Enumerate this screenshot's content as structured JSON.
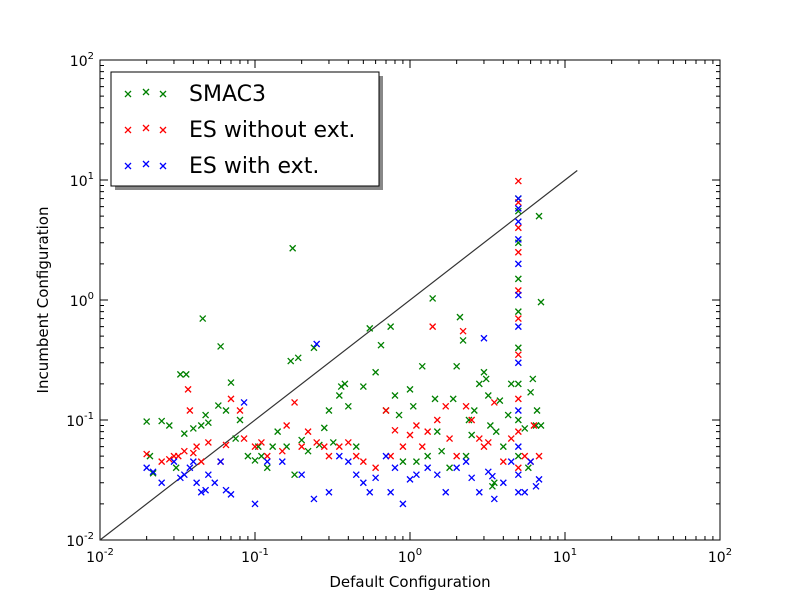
{
  "chart_data": {
    "type": "scatter",
    "xlabel": "Default Configuration",
    "ylabel": "Incumbent Configuration",
    "xscale": "log",
    "yscale": "log",
    "xlim": [
      0.01,
      100
    ],
    "ylim": [
      0.01,
      100
    ],
    "x_ticks": [
      {
        "base": "10",
        "exp": "-2"
      },
      {
        "base": "10",
        "exp": "-1"
      },
      {
        "base": "10",
        "exp": "0"
      },
      {
        "base": "10",
        "exp": "1"
      },
      {
        "base": "10",
        "exp": "2"
      }
    ],
    "y_ticks": [
      {
        "base": "10",
        "exp": "-2"
      },
      {
        "base": "10",
        "exp": "-1"
      },
      {
        "base": "10",
        "exp": "0"
      },
      {
        "base": "10",
        "exp": "1"
      },
      {
        "base": "10",
        "exp": "2"
      }
    ],
    "diagonal": {
      "from": [
        0.01,
        0.01
      ],
      "to": [
        12,
        12
      ],
      "color": "#333333"
    },
    "legend_position": "top-left",
    "grid": false,
    "series": [
      {
        "name": "SMAC3",
        "color": "#008000",
        "points": [
          [
            0.02,
            0.097
          ],
          [
            0.021,
            0.05
          ],
          [
            0.022,
            0.036
          ],
          [
            0.025,
            0.098
          ],
          [
            0.028,
            0.09
          ],
          [
            0.031,
            0.04
          ],
          [
            0.033,
            0.24
          ],
          [
            0.036,
            0.24
          ],
          [
            0.035,
            0.077
          ],
          [
            0.04,
            0.085
          ],
          [
            0.045,
            0.09
          ],
          [
            0.046,
            0.7
          ],
          [
            0.048,
            0.11
          ],
          [
            0.05,
            0.095
          ],
          [
            0.058,
            0.132
          ],
          [
            0.06,
            0.41
          ],
          [
            0.065,
            0.12
          ],
          [
            0.07,
            0.205
          ],
          [
            0.075,
            0.07
          ],
          [
            0.08,
            0.1
          ],
          [
            0.09,
            0.05
          ],
          [
            0.1,
            0.046
          ],
          [
            0.105,
            0.06
          ],
          [
            0.11,
            0.05
          ],
          [
            0.12,
            0.04
          ],
          [
            0.13,
            0.06
          ],
          [
            0.14,
            0.08
          ],
          [
            0.16,
            0.06
          ],
          [
            0.175,
            2.7
          ],
          [
            0.17,
            0.31
          ],
          [
            0.18,
            0.035
          ],
          [
            0.19,
            0.33
          ],
          [
            0.2,
            0.068
          ],
          [
            0.22,
            0.055
          ],
          [
            0.24,
            0.4
          ],
          [
            0.26,
            0.062
          ],
          [
            0.28,
            0.086
          ],
          [
            0.3,
            0.12
          ],
          [
            0.32,
            0.065
          ],
          [
            0.35,
            0.16
          ],
          [
            0.36,
            0.19
          ],
          [
            0.38,
            0.2
          ],
          [
            0.4,
            0.13
          ],
          [
            0.45,
            0.06
          ],
          [
            0.5,
            0.19
          ],
          [
            0.55,
            0.58
          ],
          [
            0.6,
            0.25
          ],
          [
            0.65,
            0.42
          ],
          [
            0.7,
            0.12
          ],
          [
            0.75,
            0.6
          ],
          [
            0.8,
            0.16
          ],
          [
            0.85,
            0.11
          ],
          [
            0.9,
            0.045
          ],
          [
            1.0,
            0.18
          ],
          [
            1.05,
            0.13
          ],
          [
            1.1,
            0.045
          ],
          [
            1.2,
            0.28
          ],
          [
            1.3,
            0.05
          ],
          [
            1.4,
            1.03
          ],
          [
            1.45,
            0.15
          ],
          [
            1.5,
            0.08
          ],
          [
            1.6,
            0.055
          ],
          [
            1.8,
            0.04
          ],
          [
            1.9,
            0.15
          ],
          [
            2.0,
            0.28
          ],
          [
            2.1,
            0.72
          ],
          [
            2.2,
            0.46
          ],
          [
            2.3,
            0.05
          ],
          [
            2.4,
            0.1
          ],
          [
            2.5,
            0.075
          ],
          [
            2.6,
            0.12
          ],
          [
            2.8,
            0.2
          ],
          [
            3.0,
            0.25
          ],
          [
            3.1,
            0.22
          ],
          [
            3.2,
            0.16
          ],
          [
            3.3,
            0.09
          ],
          [
            3.4,
            0.028
          ],
          [
            3.5,
            0.03
          ],
          [
            3.6,
            0.08
          ],
          [
            3.8,
            0.145
          ],
          [
            4.0,
            0.06
          ],
          [
            4.3,
            0.11
          ],
          [
            4.5,
            0.2
          ],
          [
            5,
            7.0
          ],
          [
            5,
            5.5
          ],
          [
            5,
            3.0
          ],
          [
            5,
            1.5
          ],
          [
            5,
            0.8
          ],
          [
            5,
            0.4
          ],
          [
            5,
            0.2
          ],
          [
            5,
            0.1
          ],
          [
            5,
            0.05
          ],
          [
            5.5,
            0.085
          ],
          [
            6.0,
            0.17
          ],
          [
            6.2,
            0.22
          ],
          [
            6.5,
            0.09
          ],
          [
            6.8,
            5.0
          ],
          [
            7.0,
            0.96
          ],
          [
            7.0,
            0.09
          ],
          [
            6.6,
            0.12
          ],
          [
            5.8,
            0.04
          ]
        ]
      },
      {
        "name": "ES without ext.",
        "color": "#ff0000",
        "points": [
          [
            0.02,
            0.052
          ],
          [
            0.025,
            0.045
          ],
          [
            0.028,
            0.047
          ],
          [
            0.03,
            0.05
          ],
          [
            0.032,
            0.05
          ],
          [
            0.035,
            0.055
          ],
          [
            0.037,
            0.18
          ],
          [
            0.038,
            0.12
          ],
          [
            0.04,
            0.053
          ],
          [
            0.042,
            0.06
          ],
          [
            0.045,
            0.045
          ],
          [
            0.05,
            0.065
          ],
          [
            0.06,
            0.045
          ],
          [
            0.065,
            0.062
          ],
          [
            0.07,
            0.15
          ],
          [
            0.08,
            0.12
          ],
          [
            0.085,
            0.07
          ],
          [
            0.1,
            0.06
          ],
          [
            0.11,
            0.065
          ],
          [
            0.12,
            0.05
          ],
          [
            0.15,
            0.055
          ],
          [
            0.16,
            0.09
          ],
          [
            0.18,
            0.14
          ],
          [
            0.2,
            0.06
          ],
          [
            0.22,
            0.08
          ],
          [
            0.25,
            0.065
          ],
          [
            0.28,
            0.06
          ],
          [
            0.3,
            0.05
          ],
          [
            0.35,
            0.06
          ],
          [
            0.4,
            0.065
          ],
          [
            0.45,
            0.05
          ],
          [
            0.5,
            0.045
          ],
          [
            0.6,
            0.04
          ],
          [
            0.7,
            0.12
          ],
          [
            0.75,
            0.05
          ],
          [
            0.8,
            0.082
          ],
          [
            0.9,
            0.06
          ],
          [
            1.0,
            0.075
          ],
          [
            1.1,
            0.09
          ],
          [
            1.2,
            0.06
          ],
          [
            1.3,
            0.08
          ],
          [
            1.4,
            0.6
          ],
          [
            1.5,
            0.1
          ],
          [
            1.7,
            0.13
          ],
          [
            1.8,
            0.07
          ],
          [
            2.0,
            0.05
          ],
          [
            2.2,
            0.55
          ],
          [
            2.3,
            0.13
          ],
          [
            2.5,
            0.1
          ],
          [
            2.8,
            0.07
          ],
          [
            3.0,
            0.06
          ],
          [
            3.2,
            0.065
          ],
          [
            3.5,
            0.14
          ],
          [
            4.0,
            0.045
          ],
          [
            4.5,
            0.07
          ],
          [
            5,
            9.8
          ],
          [
            5,
            6.5
          ],
          [
            5,
            4.0
          ],
          [
            5,
            2.5
          ],
          [
            5,
            1.2
          ],
          [
            5,
            0.7
          ],
          [
            5,
            0.35
          ],
          [
            5,
            0.15
          ],
          [
            5,
            0.08
          ],
          [
            5,
            0.04
          ],
          [
            5.5,
            0.05
          ],
          [
            6.0,
            0.045
          ],
          [
            6.3,
            0.09
          ],
          [
            6.8,
            0.05
          ]
        ]
      },
      {
        "name": "ES with ext.",
        "color": "#0000ff",
        "points": [
          [
            0.02,
            0.04
          ],
          [
            0.022,
            0.037
          ],
          [
            0.025,
            0.03
          ],
          [
            0.03,
            0.045
          ],
          [
            0.033,
            0.033
          ],
          [
            0.035,
            0.035
          ],
          [
            0.038,
            0.04
          ],
          [
            0.04,
            0.045
          ],
          [
            0.042,
            0.03
          ],
          [
            0.045,
            0.025
          ],
          [
            0.048,
            0.026
          ],
          [
            0.05,
            0.035
          ],
          [
            0.055,
            0.03
          ],
          [
            0.06,
            0.045
          ],
          [
            0.065,
            0.026
          ],
          [
            0.07,
            0.024
          ],
          [
            0.085,
            0.14
          ],
          [
            0.1,
            0.02
          ],
          [
            0.12,
            0.045
          ],
          [
            0.15,
            0.045
          ],
          [
            0.2,
            0.035
          ],
          [
            0.25,
            0.43
          ],
          [
            0.24,
            0.022
          ],
          [
            0.3,
            0.025
          ],
          [
            0.35,
            0.05
          ],
          [
            0.4,
            0.045
          ],
          [
            0.45,
            0.035
          ],
          [
            0.5,
            0.03
          ],
          [
            0.55,
            0.025
          ],
          [
            0.6,
            0.033
          ],
          [
            0.7,
            0.05
          ],
          [
            0.75,
            0.025
          ],
          [
            0.8,
            0.04
          ],
          [
            0.9,
            0.02
          ],
          [
            1.0,
            0.032
          ],
          [
            1.1,
            0.035
          ],
          [
            1.3,
            0.04
          ],
          [
            1.5,
            0.035
          ],
          [
            1.7,
            0.025
          ],
          [
            2.0,
            0.04
          ],
          [
            2.3,
            0.045
          ],
          [
            2.5,
            0.033
          ],
          [
            2.8,
            0.025
          ],
          [
            3.0,
            0.48
          ],
          [
            3.2,
            0.037
          ],
          [
            3.4,
            0.034
          ],
          [
            3.5,
            0.022
          ],
          [
            4.0,
            0.03
          ],
          [
            4.5,
            0.045
          ],
          [
            5,
            7.0
          ],
          [
            5,
            5.8
          ],
          [
            5,
            4.5
          ],
          [
            5,
            3.2
          ],
          [
            5,
            2.0
          ],
          [
            5,
            1.1
          ],
          [
            5,
            0.6
          ],
          [
            5,
            0.3
          ],
          [
            5,
            0.12
          ],
          [
            5,
            0.06
          ],
          [
            5,
            0.035
          ],
          [
            5,
            0.025
          ],
          [
            5.5,
            0.025
          ],
          [
            6.0,
            0.045
          ],
          [
            6.5,
            0.028
          ],
          [
            6.8,
            0.032
          ]
        ]
      }
    ]
  }
}
